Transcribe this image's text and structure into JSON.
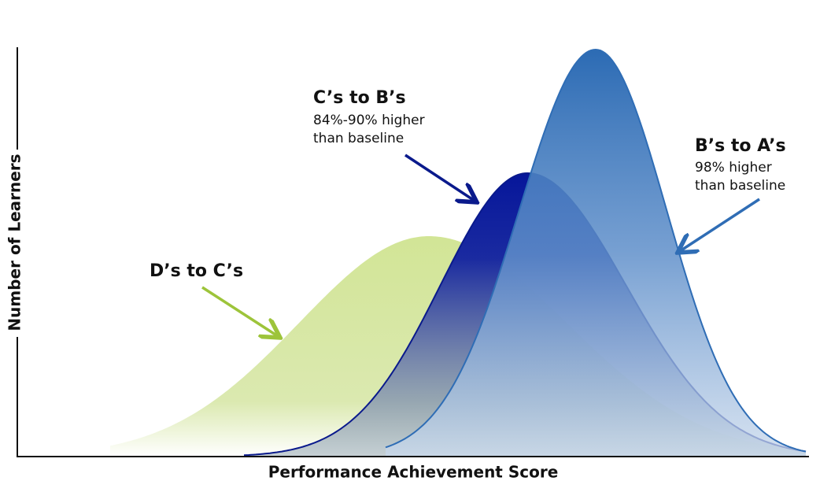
{
  "y_axis_label": "Number of Learners",
  "x_axis_label": "Performance Achievement Score",
  "annotations": [
    {
      "title": "D’s to C’s",
      "lines": []
    },
    {
      "title": "C’s to B’s",
      "lines": [
        "84%-90% higher",
        "than baseline"
      ]
    },
    {
      "title": "B’s to A’s",
      "lines": [
        "98% higher",
        "than baseline"
      ]
    }
  ]
}
